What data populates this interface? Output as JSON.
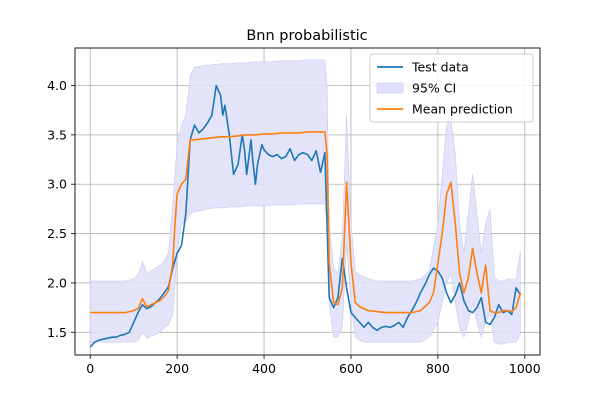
{
  "chart_data": {
    "type": "line",
    "title": "Bnn probabilistic",
    "xlabel": "",
    "ylabel": "",
    "xlim": [
      -35,
      1035
    ],
    "ylim": [
      1.27,
      4.38
    ],
    "xticks": [
      0,
      200,
      400,
      600,
      800,
      1000
    ],
    "yticks": [
      1.5,
      2.0,
      2.5,
      3.0,
      3.5,
      4.0
    ],
    "xtick_labels": [
      "0",
      "200",
      "400",
      "600",
      "800",
      "1000"
    ],
    "ytick_labels": [
      "1.5",
      "2.0",
      "2.5",
      "3.0",
      "3.5",
      "4.0"
    ],
    "grid": true,
    "legend": {
      "placement": "top-right",
      "entries": [
        {
          "label": "Test data",
          "kind": "line",
          "color": "#1f77b4"
        },
        {
          "label": "95% CI",
          "kind": "patch",
          "color": "#e0e0fa"
        },
        {
          "label": "Mean prediction",
          "kind": "line",
          "color": "#ff7f0e"
        }
      ]
    },
    "series": [
      {
        "name": "Test data",
        "color": "#1f77b4",
        "x": [
          0,
          10,
          20,
          30,
          40,
          50,
          60,
          70,
          80,
          90,
          100,
          110,
          120,
          130,
          140,
          150,
          160,
          170,
          180,
          190,
          200,
          210,
          220,
          230,
          240,
          250,
          260,
          270,
          280,
          290,
          300,
          305,
          310,
          320,
          330,
          340,
          350,
          355,
          360,
          370,
          375,
          380,
          385,
          390,
          395,
          400,
          410,
          420,
          430,
          440,
          450,
          460,
          470,
          480,
          490,
          500,
          510,
          520,
          530,
          540,
          550,
          560,
          570,
          580,
          590,
          600,
          610,
          620,
          630,
          640,
          650,
          660,
          670,
          680,
          690,
          700,
          710,
          720,
          730,
          740,
          750,
          760,
          770,
          780,
          790,
          800,
          810,
          820,
          830,
          840,
          850,
          860,
          870,
          880,
          890,
          900,
          910,
          920,
          930,
          940,
          950,
          960,
          970,
          980,
          990
        ],
        "y": [
          1.35,
          1.4,
          1.42,
          1.43,
          1.44,
          1.45,
          1.45,
          1.47,
          1.48,
          1.5,
          1.6,
          1.7,
          1.78,
          1.74,
          1.76,
          1.8,
          1.84,
          1.9,
          1.96,
          2.15,
          2.3,
          2.38,
          2.7,
          3.45,
          3.6,
          3.52,
          3.56,
          3.62,
          3.7,
          4.0,
          3.9,
          3.7,
          3.8,
          3.5,
          3.1,
          3.2,
          3.5,
          3.35,
          3.1,
          3.45,
          3.2,
          3.0,
          3.2,
          3.3,
          3.4,
          3.35,
          3.3,
          3.28,
          3.3,
          3.26,
          3.28,
          3.36,
          3.24,
          3.3,
          3.32,
          3.3,
          3.24,
          3.34,
          3.12,
          3.32,
          1.85,
          1.75,
          1.85,
          2.25,
          1.95,
          1.7,
          1.65,
          1.6,
          1.55,
          1.6,
          1.55,
          1.52,
          1.55,
          1.56,
          1.55,
          1.57,
          1.6,
          1.55,
          1.65,
          1.72,
          1.8,
          1.9,
          1.98,
          2.08,
          2.15,
          2.12,
          2.05,
          1.9,
          1.8,
          1.88,
          2.0,
          1.82,
          1.72,
          1.7,
          1.75,
          1.85,
          1.6,
          1.58,
          1.65,
          1.78,
          1.7,
          1.72,
          1.68,
          1.95,
          1.88
        ]
      },
      {
        "name": "Mean prediction",
        "color": "#ff7f0e",
        "x": [
          0,
          20,
          40,
          60,
          80,
          100,
          110,
          120,
          130,
          140,
          150,
          160,
          170,
          180,
          190,
          195,
          200,
          210,
          220,
          230,
          240,
          260,
          280,
          300,
          320,
          340,
          360,
          380,
          400,
          420,
          440,
          460,
          480,
          500,
          520,
          540,
          545,
          550,
          560,
          570,
          580,
          590,
          600,
          610,
          620,
          630,
          640,
          660,
          680,
          700,
          720,
          740,
          760,
          780,
          790,
          800,
          810,
          820,
          830,
          840,
          850,
          860,
          870,
          880,
          890,
          900,
          905,
          910,
          920,
          930,
          940,
          950,
          960,
          970,
          980,
          990
        ],
        "y": [
          1.7,
          1.7,
          1.7,
          1.7,
          1.7,
          1.72,
          1.74,
          1.84,
          1.76,
          1.78,
          1.8,
          1.82,
          1.86,
          1.92,
          2.2,
          2.6,
          2.9,
          3.0,
          3.05,
          3.45,
          3.45,
          3.46,
          3.47,
          3.48,
          3.48,
          3.49,
          3.5,
          3.5,
          3.51,
          3.51,
          3.52,
          3.52,
          3.52,
          3.53,
          3.53,
          3.53,
          3.3,
          2.2,
          1.8,
          1.78,
          1.95,
          3.02,
          2.2,
          1.8,
          1.76,
          1.74,
          1.72,
          1.71,
          1.7,
          1.7,
          1.7,
          1.7,
          1.72,
          1.8,
          1.9,
          2.2,
          2.5,
          2.9,
          3.02,
          2.6,
          2.1,
          1.9,
          2.05,
          2.35,
          2.1,
          1.9,
          2.05,
          2.18,
          1.72,
          1.7,
          1.7,
          1.72,
          1.72,
          1.71,
          1.75,
          1.9
        ]
      }
    ],
    "ci_band": {
      "name": "95% CI",
      "color": "#e0e0fa",
      "x": [
        0,
        20,
        40,
        60,
        80,
        100,
        110,
        120,
        130,
        140,
        150,
        160,
        170,
        180,
        190,
        200,
        210,
        220,
        230,
        240,
        260,
        280,
        300,
        320,
        340,
        360,
        380,
        400,
        420,
        440,
        460,
        480,
        500,
        520,
        540,
        545,
        550,
        560,
        570,
        580,
        590,
        600,
        610,
        620,
        630,
        640,
        660,
        680,
        700,
        720,
        740,
        760,
        780,
        800,
        810,
        820,
        830,
        840,
        850,
        860,
        870,
        880,
        890,
        900,
        910,
        920,
        930,
        940,
        950,
        960,
        970,
        980,
        990
      ],
      "lower": [
        1.4,
        1.4,
        1.4,
        1.4,
        1.4,
        1.4,
        1.42,
        1.5,
        1.44,
        1.46,
        1.48,
        1.5,
        1.54,
        1.58,
        1.68,
        2.3,
        2.6,
        2.62,
        2.7,
        2.72,
        2.74,
        2.76,
        2.76,
        2.77,
        2.77,
        2.78,
        2.78,
        2.78,
        2.79,
        2.79,
        2.79,
        2.8,
        2.8,
        2.8,
        2.8,
        2.6,
        1.8,
        1.45,
        1.45,
        1.55,
        2.4,
        1.8,
        1.45,
        1.42,
        1.4,
        1.4,
        1.4,
        1.4,
        1.4,
        1.4,
        1.4,
        1.4,
        1.45,
        1.6,
        1.8,
        2.0,
        2.1,
        1.8,
        1.55,
        1.45,
        1.6,
        1.8,
        1.6,
        1.45,
        1.6,
        1.7,
        1.4,
        1.38,
        1.38,
        1.4,
        1.4,
        1.4,
        1.48
      ],
      "upper": [
        2.02,
        2.02,
        2.02,
        2.02,
        2.02,
        2.04,
        2.08,
        2.22,
        2.1,
        2.12,
        2.15,
        2.18,
        2.22,
        2.3,
        2.8,
        3.4,
        3.6,
        3.7,
        4.1,
        4.18,
        4.2,
        4.21,
        4.22,
        4.22,
        4.23,
        4.23,
        4.24,
        4.24,
        4.24,
        4.25,
        4.25,
        4.25,
        4.26,
        4.26,
        4.26,
        4.0,
        2.6,
        2.15,
        2.1,
        2.45,
        3.7,
        2.6,
        2.12,
        2.08,
        2.06,
        2.04,
        2.02,
        2.02,
        2.02,
        2.02,
        2.02,
        2.04,
        2.12,
        2.6,
        3.1,
        3.6,
        3.65,
        3.3,
        2.6,
        2.3,
        2.7,
        3.1,
        2.7,
        2.3,
        2.6,
        2.75,
        2.06,
        2.02,
        2.02,
        2.04,
        2.04,
        2.04,
        2.32
      ]
    }
  }
}
